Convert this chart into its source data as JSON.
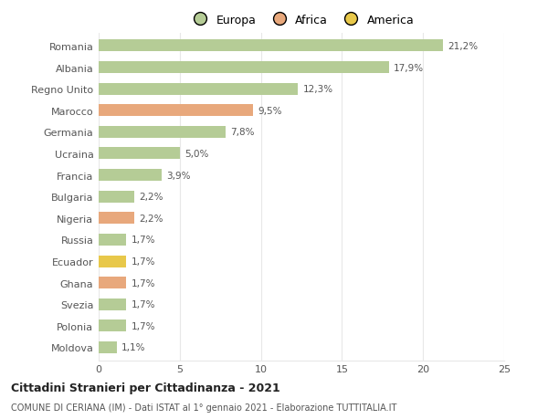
{
  "categories": [
    "Romania",
    "Albania",
    "Regno Unito",
    "Marocco",
    "Germania",
    "Ucraina",
    "Francia",
    "Bulgaria",
    "Nigeria",
    "Russia",
    "Ecuador",
    "Ghana",
    "Svezia",
    "Polonia",
    "Moldova"
  ],
  "values": [
    21.2,
    17.9,
    12.3,
    9.5,
    7.8,
    5.0,
    3.9,
    2.2,
    2.2,
    1.7,
    1.7,
    1.7,
    1.7,
    1.7,
    1.1
  ],
  "labels": [
    "21,2%",
    "17,9%",
    "12,3%",
    "9,5%",
    "7,8%",
    "5,0%",
    "3,9%",
    "2,2%",
    "2,2%",
    "1,7%",
    "1,7%",
    "1,7%",
    "1,7%",
    "1,7%",
    "1,1%"
  ],
  "colors": [
    "#b5cc96",
    "#b5cc96",
    "#b5cc96",
    "#e8a87c",
    "#b5cc96",
    "#b5cc96",
    "#b5cc96",
    "#b5cc96",
    "#e8a87c",
    "#b5cc96",
    "#e8c84a",
    "#e8a87c",
    "#b5cc96",
    "#b5cc96",
    "#b5cc96"
  ],
  "legend_labels": [
    "Europa",
    "Africa",
    "America"
  ],
  "legend_colors": [
    "#b5cc96",
    "#e8a87c",
    "#e8c84a"
  ],
  "title": "Cittadini Stranieri per Cittadinanza - 2021",
  "subtitle": "COMUNE DI CERIANA (IM) - Dati ISTAT al 1° gennaio 2021 - Elaborazione TUTTITALIA.IT",
  "xlim": [
    0,
    25
  ],
  "xticks": [
    0,
    5,
    10,
    15,
    20,
    25
  ],
  "background_color": "#ffffff",
  "grid_color": "#e8e8e8",
  "bar_height": 0.55
}
